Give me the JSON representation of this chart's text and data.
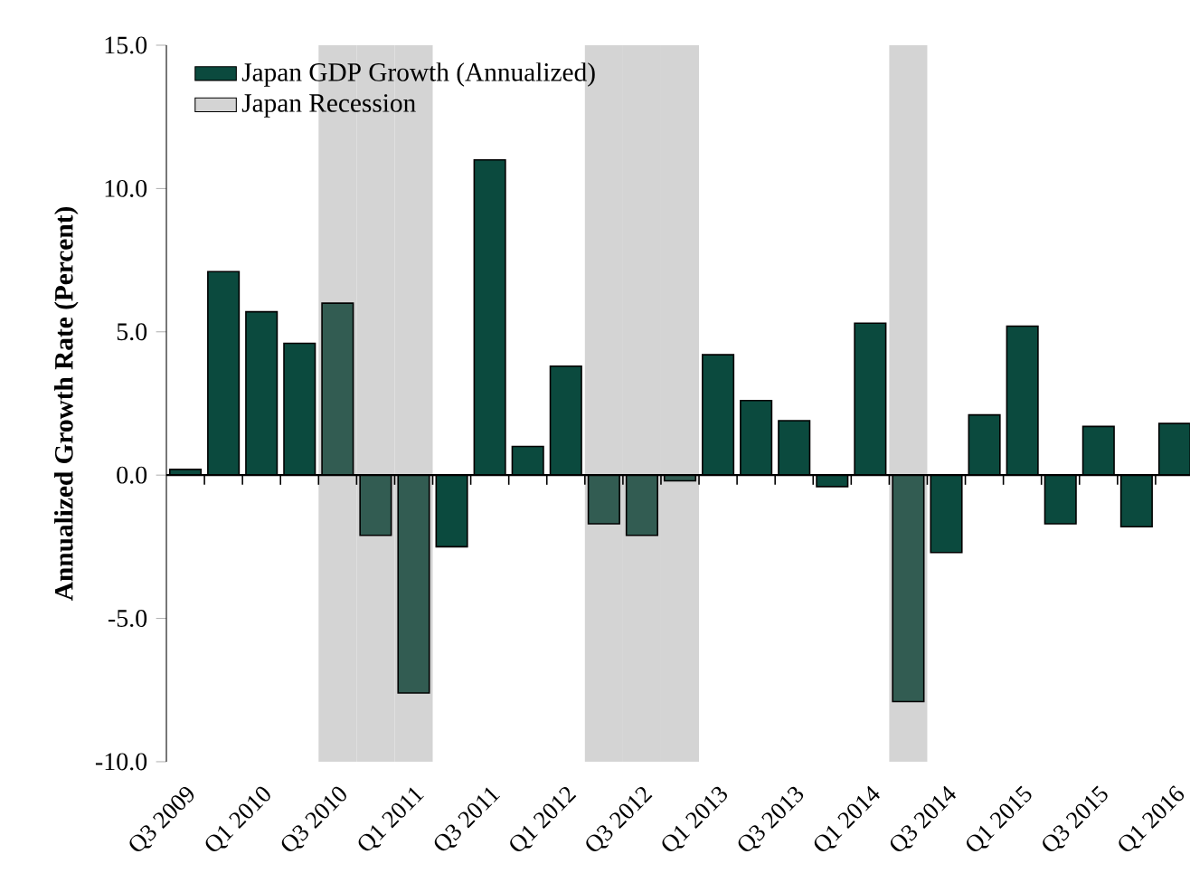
{
  "chart_data": {
    "type": "bar",
    "ylabel": "Annualized Growth Rate (Percent)",
    "categories": [
      "Q3 2009",
      null,
      "Q1 2010",
      null,
      "Q3 2010",
      null,
      "Q1 2011",
      null,
      "Q3 2011",
      null,
      "Q1 2012",
      null,
      "Q3 2012",
      null,
      "Q1 2013",
      null,
      "Q3 2013",
      null,
      "Q1 2014",
      null,
      "Q3 2014",
      null,
      "Q1 2015",
      null,
      "Q3 2015",
      null,
      "Q1 2016"
    ],
    "series": [
      {
        "name": "Japan GDP Growth (Annualized)",
        "color": "#0b4a3e",
        "colors": [
          "#0b4a3e",
          "#0b4a3e",
          "#0b4a3e",
          "#0b4a3e",
          "#325c52",
          "#325c52",
          "#325c52",
          "#0b4a3e",
          "#0b4a3e",
          "#0b4a3e",
          "#0b4a3e",
          "#325c52",
          "#325c52",
          "#325c52",
          "#0b4a3e",
          "#0b4a3e",
          "#0b4a3e",
          "#0b4a3e",
          "#0b4a3e",
          "#325c52",
          "#0b4a3e",
          "#0b4a3e",
          "#0b4a3e",
          "#0b4a3e",
          "#0b4a3e",
          "#0b4a3e",
          "#0b4a3e"
        ],
        "values": [
          0.2,
          7.1,
          5.7,
          4.6,
          6.0,
          -2.1,
          -7.6,
          -2.5,
          11.0,
          1.0,
          3.8,
          -1.7,
          -2.1,
          -0.2,
          4.2,
          2.6,
          1.9,
          -0.4,
          5.3,
          -7.9,
          -2.7,
          2.1,
          5.2,
          -1.7,
          1.7,
          -1.8,
          1.8
        ]
      },
      {
        "name": "Japan Recession",
        "color": "#d4d4d4",
        "base": [
          null,
          null,
          null,
          null,
          -10,
          -10,
          -10,
          null,
          null,
          null,
          null,
          -10,
          -10,
          -10,
          null,
          null,
          null,
          null,
          null,
          -10,
          null,
          null,
          null,
          null,
          null,
          null,
          null
        ],
        "values": [
          null,
          null,
          null,
          null,
          25,
          25,
          25,
          null,
          null,
          null,
          null,
          25,
          25,
          25,
          null,
          null,
          null,
          null,
          null,
          25,
          null,
          null,
          null,
          null,
          null,
          null,
          null
        ]
      }
    ],
    "ylim": [
      -10,
      15
    ],
    "yticks": [
      {
        "value": -10,
        "label": "-10.0"
      },
      {
        "value": -5,
        "label": "-5.0"
      },
      {
        "value": 0,
        "label": "0.0"
      },
      {
        "value": 5,
        "label": "5.0"
      },
      {
        "value": 10,
        "label": "10.0"
      },
      {
        "value": 15,
        "label": "15.0"
      }
    ],
    "legend": "top left"
  }
}
